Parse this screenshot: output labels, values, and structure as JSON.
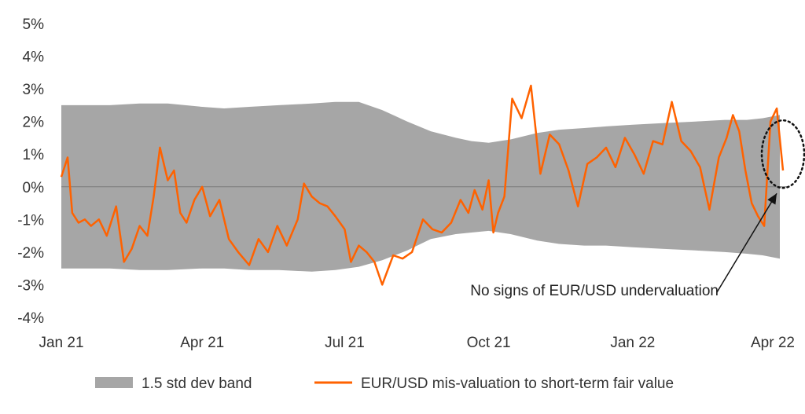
{
  "chart_data": {
    "type": "area+line",
    "title": "",
    "xlabel": "",
    "ylabel": "",
    "ylim": [
      -4,
      5
    ],
    "y_ticks": [
      5,
      4,
      3,
      2,
      1,
      0,
      -1,
      -2,
      -3,
      -4
    ],
    "y_tick_labels": [
      "5%",
      "4%",
      "3%",
      "2%",
      "1%",
      "0%",
      "-1%",
      "-2%",
      "-3%",
      "-4%"
    ],
    "x_range": [
      "2021-01-01",
      "2022-04-10"
    ],
    "x_ticks": [
      {
        "date": "2021-01-01",
        "label": "Jan 21"
      },
      {
        "date": "2021-04-01",
        "label": "Apr 21"
      },
      {
        "date": "2021-07-01",
        "label": "Jul 21"
      },
      {
        "date": "2021-10-01",
        "label": "Oct 21"
      },
      {
        "date": "2022-01-01",
        "label": "Jan 22"
      },
      {
        "date": "2022-04-01",
        "label": "Apr 22"
      }
    ],
    "grid": false,
    "zero_line": true,
    "legend_position": "bottom",
    "band": {
      "name": "1.5 std dev band",
      "color": "#a6a6a6",
      "x": [
        "2021-01-01",
        "2021-02-01",
        "2021-02-20",
        "2021-03-10",
        "2021-04-01",
        "2021-04-15",
        "2021-05-01",
        "2021-05-20",
        "2021-06-10",
        "2021-06-25",
        "2021-07-10",
        "2021-07-25",
        "2021-08-10",
        "2021-08-25",
        "2021-09-10",
        "2021-09-20",
        "2021-10-01",
        "2021-10-15",
        "2021-11-01",
        "2021-11-15",
        "2021-12-01",
        "2021-12-15",
        "2022-01-01",
        "2022-01-20",
        "2022-02-10",
        "2022-03-01",
        "2022-03-15",
        "2022-03-25",
        "2022-04-05"
      ],
      "upper": [
        2.5,
        2.5,
        2.55,
        2.55,
        2.45,
        2.4,
        2.45,
        2.5,
        2.55,
        2.6,
        2.6,
        2.35,
        2.0,
        1.7,
        1.5,
        1.4,
        1.35,
        1.45,
        1.65,
        1.75,
        1.8,
        1.85,
        1.9,
        1.95,
        2.0,
        2.05,
        2.05,
        2.1,
        2.2
      ],
      "lower": [
        -2.5,
        -2.5,
        -2.55,
        -2.55,
        -2.5,
        -2.5,
        -2.55,
        -2.55,
        -2.6,
        -2.55,
        -2.45,
        -2.25,
        -1.95,
        -1.6,
        -1.45,
        -1.4,
        -1.35,
        -1.45,
        -1.65,
        -1.75,
        -1.8,
        -1.8,
        -1.85,
        -1.9,
        -1.95,
        -2.0,
        -2.05,
        -2.1,
        -2.2
      ]
    },
    "series": [
      {
        "name": "EUR/USD mis-valuation to short-term fair value",
        "color": "#ff6200",
        "x": [
          "2021-01-01",
          "2021-01-05",
          "2021-01-08",
          "2021-01-12",
          "2021-01-16",
          "2021-01-20",
          "2021-01-25",
          "2021-01-30",
          "2021-02-05",
          "2021-02-10",
          "2021-02-15",
          "2021-02-20",
          "2021-02-25",
          "2021-03-01",
          "2021-03-05",
          "2021-03-10",
          "2021-03-14",
          "2021-03-18",
          "2021-03-22",
          "2021-03-27",
          "2021-04-01",
          "2021-04-06",
          "2021-04-12",
          "2021-04-18",
          "2021-04-24",
          "2021-05-01",
          "2021-05-07",
          "2021-05-13",
          "2021-05-19",
          "2021-05-25",
          "2021-06-01",
          "2021-06-05",
          "2021-06-10",
          "2021-06-15",
          "2021-06-20",
          "2021-06-25",
          "2021-07-01",
          "2021-07-05",
          "2021-07-10",
          "2021-07-15",
          "2021-07-20",
          "2021-07-25",
          "2021-08-01",
          "2021-08-07",
          "2021-08-13",
          "2021-08-20",
          "2021-08-26",
          "2021-09-01",
          "2021-09-07",
          "2021-09-13",
          "2021-09-18",
          "2021-09-22",
          "2021-09-27",
          "2021-10-01",
          "2021-10-04",
          "2021-10-07",
          "2021-10-11",
          "2021-10-16",
          "2021-10-22",
          "2021-10-28",
          "2021-11-03",
          "2021-11-09",
          "2021-11-15",
          "2021-11-21",
          "2021-11-27",
          "2021-12-03",
          "2021-12-09",
          "2021-12-15",
          "2021-12-21",
          "2021-12-27",
          "2022-01-02",
          "2022-01-08",
          "2022-01-14",
          "2022-01-20",
          "2022-01-26",
          "2022-02-01",
          "2022-02-07",
          "2022-02-13",
          "2022-02-19",
          "2022-02-25",
          "2022-03-02",
          "2022-03-06",
          "2022-03-10",
          "2022-03-14",
          "2022-03-18",
          "2022-03-22",
          "2022-03-26",
          "2022-03-30",
          "2022-04-03",
          "2022-04-07"
        ],
        "y": [
          0.3,
          0.9,
          -0.8,
          -1.1,
          -1.0,
          -1.2,
          -1.0,
          -1.5,
          -0.6,
          -2.3,
          -1.9,
          -1.2,
          -1.5,
          -0.3,
          1.2,
          0.2,
          0.5,
          -0.8,
          -1.1,
          -0.4,
          0.0,
          -0.9,
          -0.4,
          -1.6,
          -2.0,
          -2.4,
          -1.6,
          -2.0,
          -1.2,
          -1.8,
          -1.0,
          0.1,
          -0.3,
          -0.5,
          -0.6,
          -0.9,
          -1.3,
          -2.3,
          -1.8,
          -2.0,
          -2.3,
          -3.0,
          -2.1,
          -2.2,
          -2.0,
          -1.0,
          -1.3,
          -1.4,
          -1.1,
          -0.4,
          -0.8,
          -0.1,
          -0.7,
          0.2,
          -1.4,
          -0.8,
          -0.3,
          2.7,
          2.1,
          3.1,
          0.4,
          1.6,
          1.3,
          0.5,
          -0.6,
          0.7,
          0.9,
          1.2,
          0.6,
          1.5,
          1.0,
          0.4,
          1.4,
          1.3,
          2.6,
          1.4,
          1.1,
          0.6,
          -0.7,
          0.9,
          1.5,
          2.2,
          1.7,
          0.5,
          -0.5,
          -0.9,
          -1.2,
          2.0,
          2.4,
          0.5
        ]
      }
    ],
    "annotation": {
      "text": "No signs of EUR/USD undervaluation",
      "target_date": "2022-04-07",
      "target_value": 1.0
    }
  }
}
